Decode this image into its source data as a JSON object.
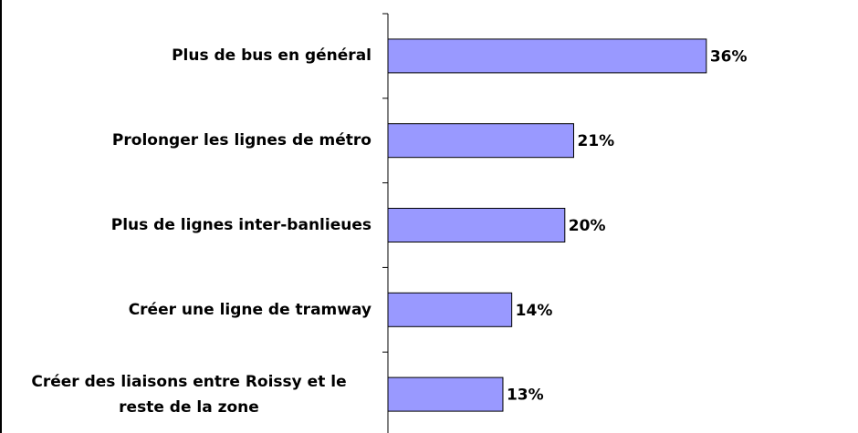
{
  "chart_data": {
    "type": "bar",
    "orientation": "horizontal",
    "categories": [
      "Plus de bus en général",
      "Prolonger les lignes de métro",
      "Plus de lignes inter-banlieues",
      "Créer une ligne de tramway",
      "Créer des liaisons entre Roissy et le reste de la zone"
    ],
    "values": [
      36,
      21,
      20,
      14,
      13
    ],
    "value_labels": [
      "36%",
      "21%",
      "20%",
      "14%",
      "13%"
    ],
    "color": "#9999ff"
  }
}
